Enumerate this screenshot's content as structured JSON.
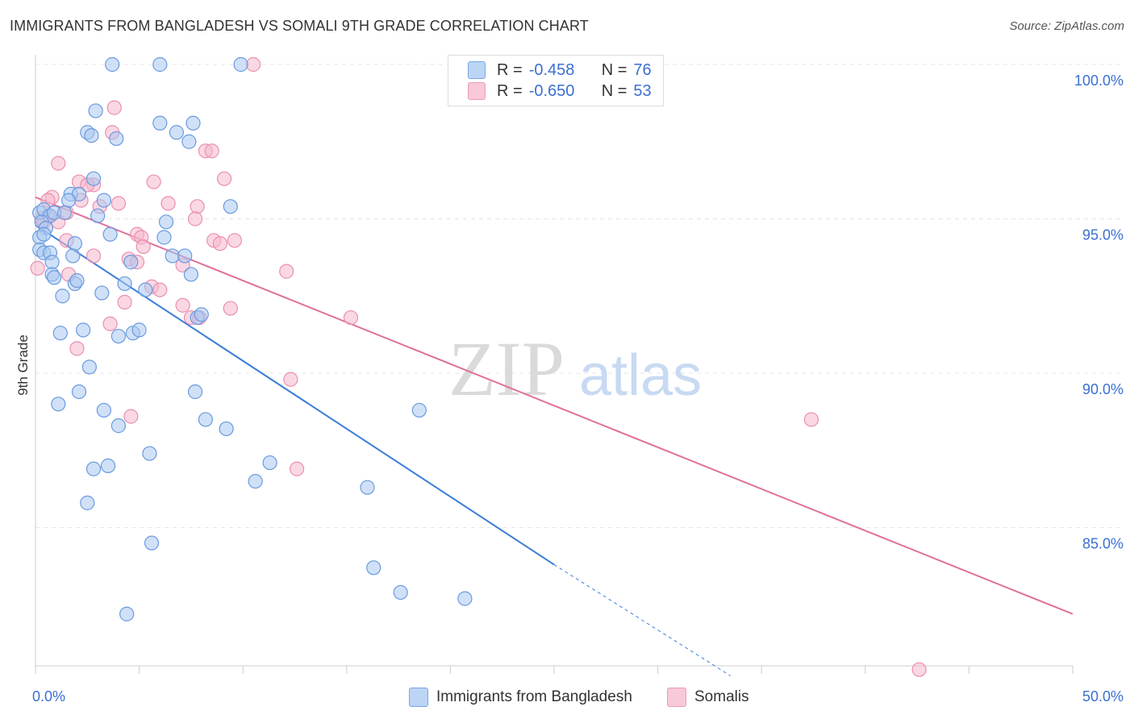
{
  "title": "IMMIGRANTS FROM BANGLADESH VS SOMALI 9TH GRADE CORRELATION CHART",
  "source": "Source: ZipAtlas.com",
  "watermark": {
    "zip": "ZIP",
    "atlas": "atlas"
  },
  "legend": {
    "rows": [
      {
        "r_label": "R =",
        "r_value": "-0.458",
        "n_label": "N =",
        "n_value": "76"
      },
      {
        "r_label": "R =",
        "r_value": "-0.650",
        "n_label": "N =",
        "n_value": "53"
      }
    ]
  },
  "bottom_legend": [
    "Immigrants from Bangladesh",
    "Somalis"
  ],
  "colors": {
    "blue_fill": "#a9c8f0",
    "blue_stroke": "#6a9ae0",
    "blue_line": "#3b7dd8",
    "pink_fill": "#f5b8cc",
    "pink_stroke": "#ea8fb0",
    "pink_line": "#e0709a",
    "axis_label": "#3b6fd1",
    "grid": "#e6e6e6"
  },
  "chart_data": {
    "type": "scatter",
    "title": "IMMIGRANTS FROM BANGLADESH VS SOMALI 9TH GRADE CORRELATION CHART",
    "xlabel": "",
    "ylabel": "9th Grade",
    "xlim": [
      0,
      50
    ],
    "ylim": [
      80.2,
      100.8
    ],
    "x_tick_labels": [
      {
        "value": 0,
        "label": "0.0%"
      },
      {
        "value": 50,
        "label": "50.0%"
      }
    ],
    "x_minor_ticks": [
      0,
      5,
      10,
      15,
      20,
      25,
      30,
      35,
      40,
      45,
      50
    ],
    "y_ticks": [
      {
        "value": 100,
        "label": "100.0%"
      },
      {
        "value": 95,
        "label": "95.0%"
      },
      {
        "value": 90,
        "label": "90.0%"
      },
      {
        "value": 85,
        "label": "85.0%"
      }
    ],
    "grid": true,
    "legend_position": "top-center",
    "series": [
      {
        "name": "Immigrants from Bangladesh",
        "color": "#6a9ae0",
        "points": [
          [
            3.7,
            100
          ],
          [
            6.0,
            100
          ],
          [
            9.9,
            100
          ],
          [
            2.9,
            98.5
          ],
          [
            6.0,
            98.1
          ],
          [
            7.6,
            98.1
          ],
          [
            2.5,
            97.8
          ],
          [
            2.7,
            97.7
          ],
          [
            3.9,
            97.6
          ],
          [
            6.8,
            97.8
          ],
          [
            7.4,
            97.5
          ],
          [
            2.8,
            96.3
          ],
          [
            1.7,
            95.8
          ],
          [
            2.1,
            95.8
          ],
          [
            1.6,
            95.6
          ],
          [
            3.3,
            95.6
          ],
          [
            9.4,
            95.4
          ],
          [
            0.2,
            95.2
          ],
          [
            0.4,
            95.3
          ],
          [
            0.7,
            95.1
          ],
          [
            0.9,
            95.2
          ],
          [
            1.4,
            95.2
          ],
          [
            3.0,
            95.1
          ],
          [
            0.3,
            94.9
          ],
          [
            0.5,
            94.7
          ],
          [
            6.3,
            94.9
          ],
          [
            0.2,
            94.4
          ],
          [
            0.4,
            94.5
          ],
          [
            3.6,
            94.5
          ],
          [
            6.2,
            94.4
          ],
          [
            1.9,
            94.2
          ],
          [
            0.2,
            94.0
          ],
          [
            0.4,
            93.9
          ],
          [
            0.7,
            93.9
          ],
          [
            1.8,
            93.8
          ],
          [
            6.6,
            93.8
          ],
          [
            7.2,
            93.8
          ],
          [
            0.8,
            93.6
          ],
          [
            4.6,
            93.6
          ],
          [
            0.8,
            93.2
          ],
          [
            0.9,
            93.1
          ],
          [
            7.5,
            93.2
          ],
          [
            1.9,
            92.9
          ],
          [
            2.0,
            93.0
          ],
          [
            4.3,
            92.9
          ],
          [
            1.3,
            92.5
          ],
          [
            3.2,
            92.6
          ],
          [
            5.3,
            92.7
          ],
          [
            7.8,
            91.8
          ],
          [
            8.0,
            91.9
          ],
          [
            1.2,
            91.3
          ],
          [
            2.3,
            91.4
          ],
          [
            4.0,
            91.2
          ],
          [
            4.7,
            91.3
          ],
          [
            5.0,
            91.4
          ],
          [
            2.6,
            90.2
          ],
          [
            1.1,
            89.0
          ],
          [
            2.1,
            89.4
          ],
          [
            7.7,
            89.4
          ],
          [
            3.3,
            88.8
          ],
          [
            8.2,
            88.5
          ],
          [
            4.0,
            88.3
          ],
          [
            9.2,
            88.2
          ],
          [
            18.5,
            88.8
          ],
          [
            5.5,
            87.4
          ],
          [
            11.3,
            87.1
          ],
          [
            3.5,
            87.0
          ],
          [
            2.8,
            86.9
          ],
          [
            10.6,
            86.5
          ],
          [
            16.0,
            86.3
          ],
          [
            2.5,
            85.8
          ],
          [
            5.6,
            84.5
          ],
          [
            16.3,
            83.7
          ],
          [
            17.6,
            82.9
          ],
          [
            20.7,
            82.7
          ],
          [
            4.4,
            82.2
          ]
        ],
        "trend": {
          "x0": 0.0,
          "y0": 94.8,
          "x1": 25.0,
          "y1": 83.8,
          "dashed_to_x": 33.5,
          "dashed_to_y": 80.2
        }
      },
      {
        "name": "Somalis",
        "color": "#ea8fb0",
        "points": [
          [
            10.5,
            100
          ],
          [
            3.8,
            98.6
          ],
          [
            3.7,
            97.8
          ],
          [
            8.2,
            97.2
          ],
          [
            8.5,
            97.2
          ],
          [
            1.1,
            96.8
          ],
          [
            9.1,
            96.3
          ],
          [
            2.1,
            96.2
          ],
          [
            2.8,
            96.1
          ],
          [
            5.7,
            96.2
          ],
          [
            2.5,
            96.1
          ],
          [
            0.8,
            95.7
          ],
          [
            0.6,
            95.6
          ],
          [
            4.0,
            95.5
          ],
          [
            6.4,
            95.5
          ],
          [
            7.8,
            95.4
          ],
          [
            3.1,
            95.4
          ],
          [
            2.2,
            95.6
          ],
          [
            0.6,
            95.1
          ],
          [
            1.5,
            95.2
          ],
          [
            0.3,
            95.0
          ],
          [
            7.7,
            95.0
          ],
          [
            1.1,
            94.9
          ],
          [
            0.4,
            94.9
          ],
          [
            4.9,
            94.5
          ],
          [
            5.1,
            94.4
          ],
          [
            8.6,
            94.3
          ],
          [
            9.6,
            94.3
          ],
          [
            8.9,
            94.2
          ],
          [
            5.2,
            94.1
          ],
          [
            1.5,
            94.3
          ],
          [
            2.8,
            93.8
          ],
          [
            4.5,
            93.7
          ],
          [
            4.9,
            93.6
          ],
          [
            7.1,
            93.5
          ],
          [
            12.1,
            93.3
          ],
          [
            0.1,
            93.4
          ],
          [
            1.6,
            93.2
          ],
          [
            5.6,
            92.8
          ],
          [
            6.0,
            92.7
          ],
          [
            4.3,
            92.3
          ],
          [
            7.1,
            92.2
          ],
          [
            9.4,
            92.1
          ],
          [
            7.5,
            91.8
          ],
          [
            7.9,
            91.8
          ],
          [
            15.2,
            91.8
          ],
          [
            3.6,
            91.6
          ],
          [
            2.0,
            90.8
          ],
          [
            12.3,
            89.8
          ],
          [
            4.6,
            88.6
          ],
          [
            37.4,
            88.5
          ],
          [
            12.6,
            86.9
          ],
          [
            42.6,
            80.4
          ]
        ],
        "trend": {
          "x0": 0.0,
          "y0": 95.7,
          "x1": 50.0,
          "y1": 82.2
        }
      }
    ]
  }
}
